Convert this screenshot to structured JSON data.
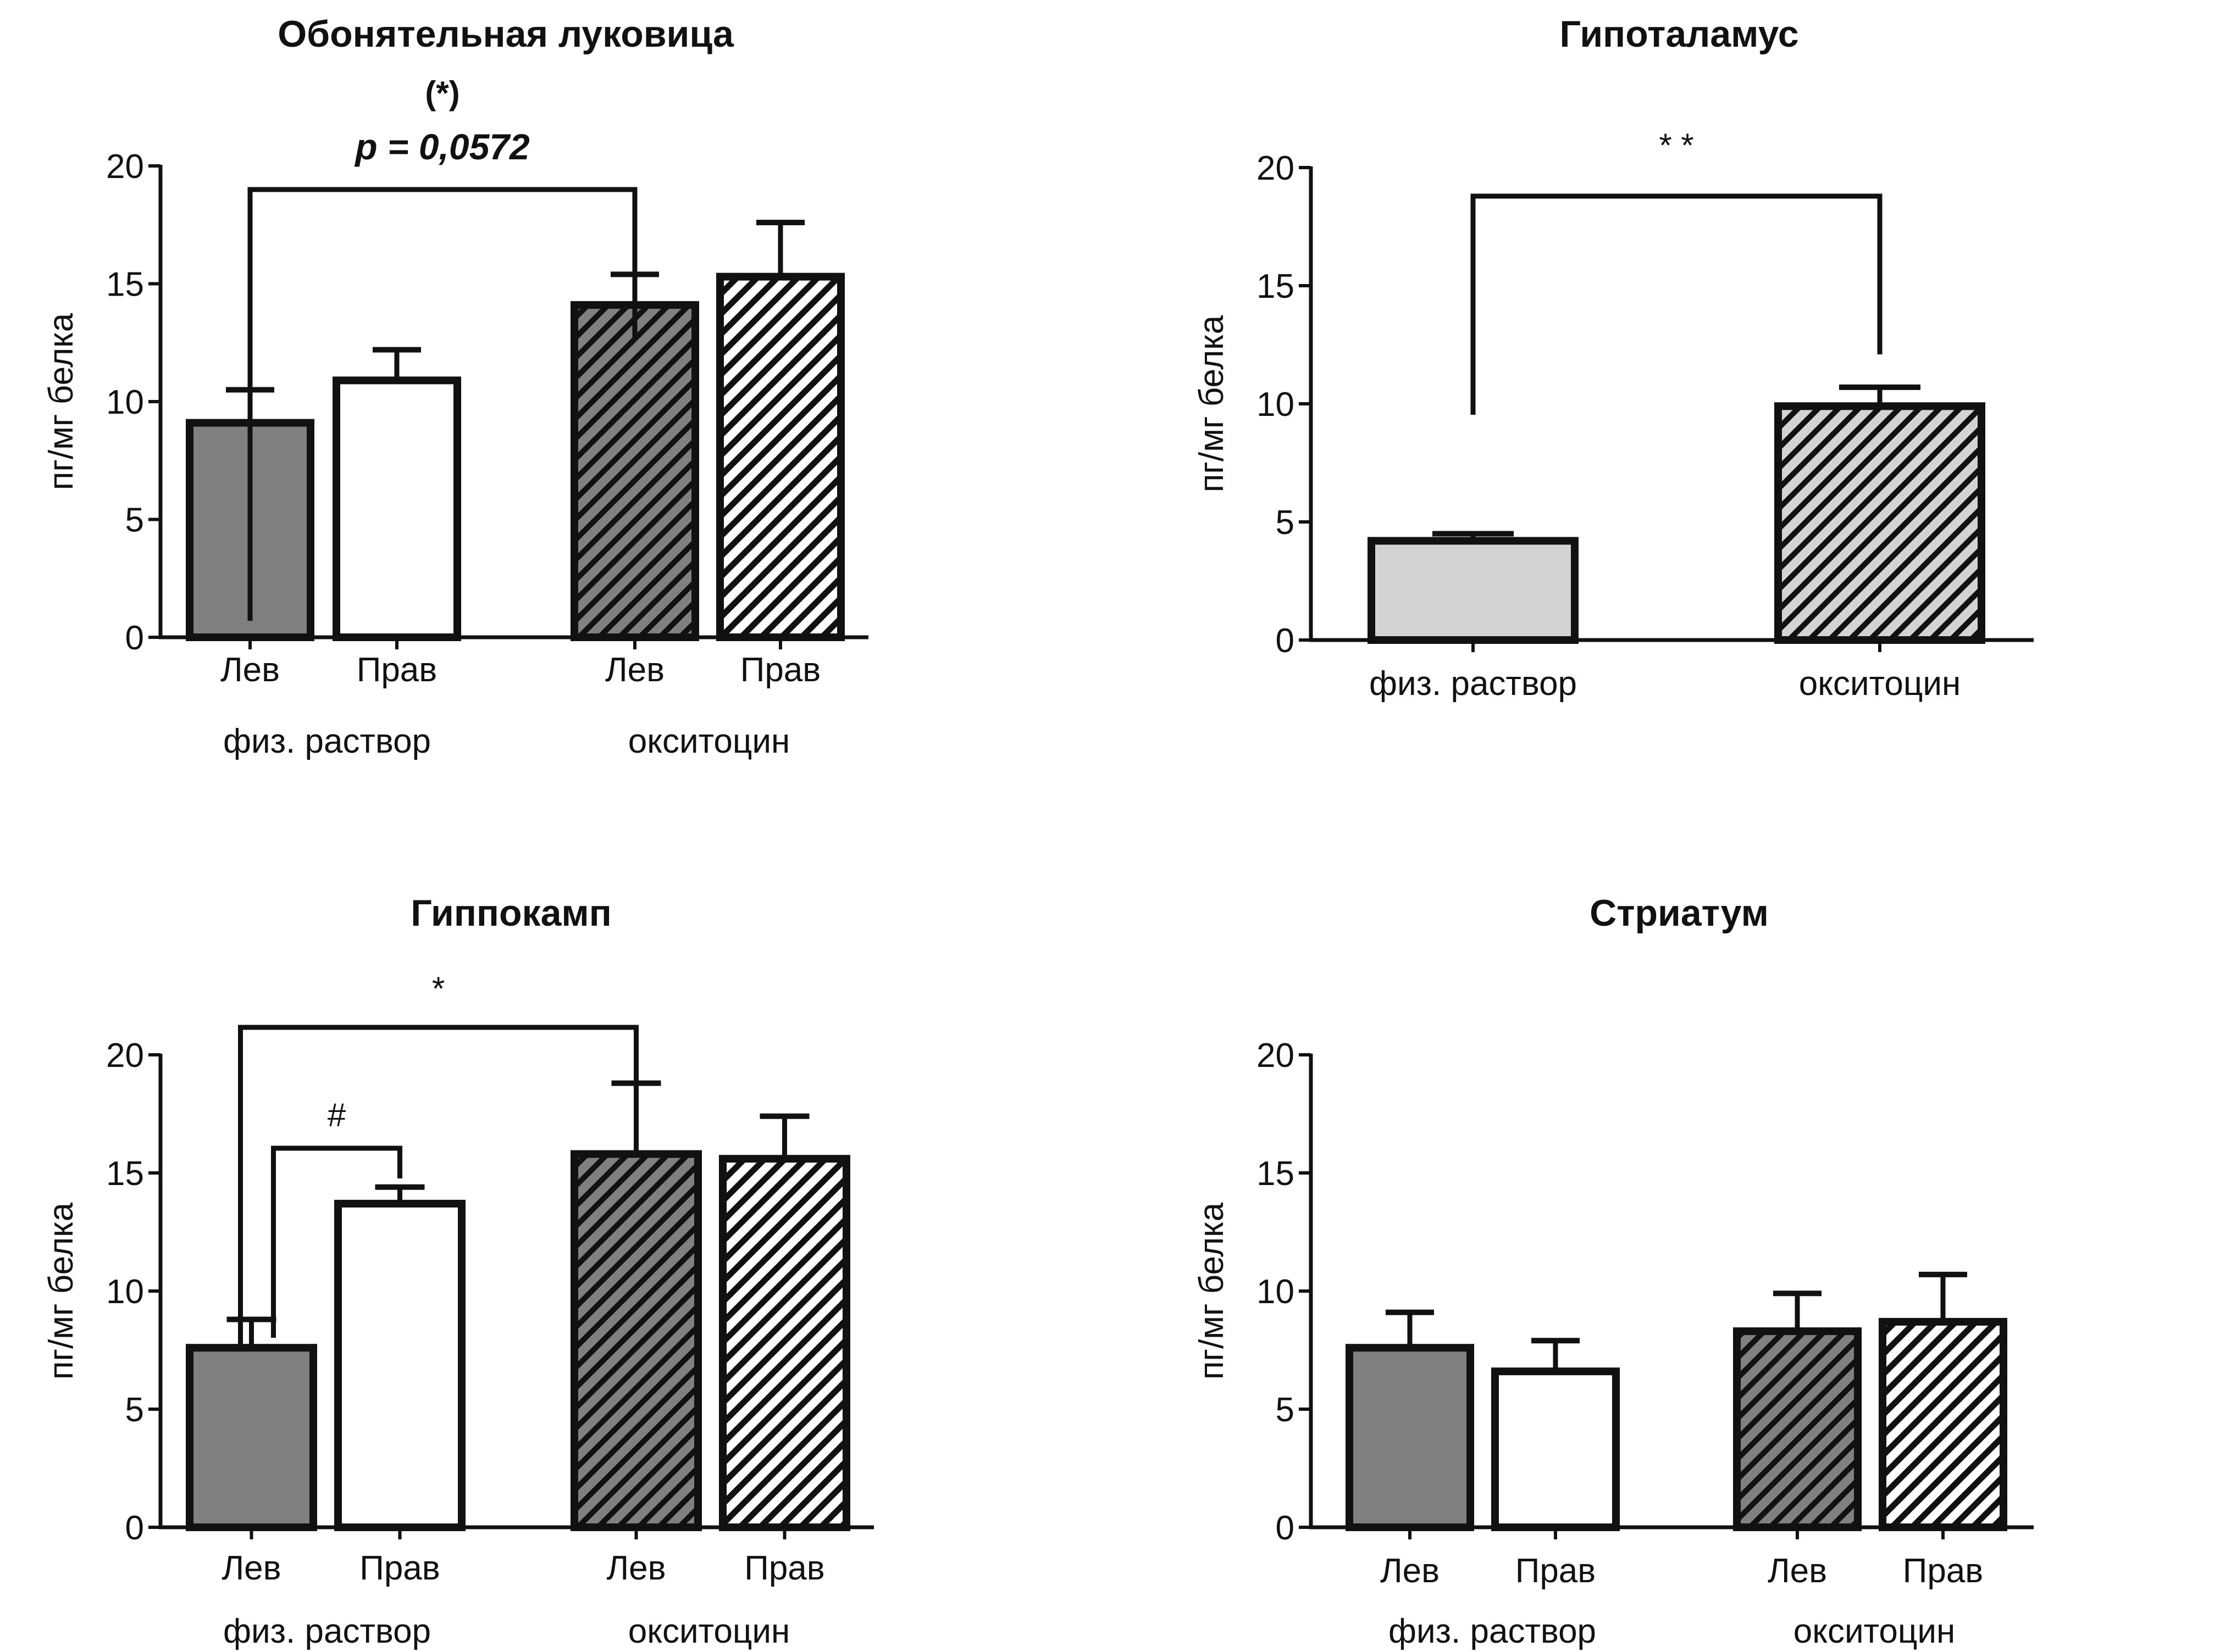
{
  "figure": {
    "description": "Four bar charts of oxytocin content in brain regions"
  },
  "chart_data": [
    {
      "type": "bar",
      "id": "olfactory",
      "title": "Обонятельная луковица",
      "ylabel": "пг/мг белка",
      "ylim": [
        0,
        20
      ],
      "yticks": [
        0,
        5,
        10,
        15,
        20
      ],
      "categories": [
        "Лев",
        "Прав",
        "Лев",
        "Прав"
      ],
      "groups": [
        {
          "label": "физ. раствор",
          "members": [
            0,
            1
          ]
        },
        {
          "label": "окситоцин",
          "members": [
            2,
            3
          ]
        }
      ],
      "values": [
        9.1,
        10.9,
        14.1,
        15.3
      ],
      "error_upper": [
        10.5,
        12.2,
        15.4,
        17.6
      ],
      "fills": [
        "gray",
        "white",
        "gray-hatch",
        "white-hatch"
      ],
      "annotations": [
        {
          "from": 0,
          "to": 2,
          "text": "(*)",
          "subtext": "p = 0,0572"
        }
      ]
    },
    {
      "type": "bar",
      "id": "hypothalamus",
      "title": "Гипоталамус",
      "ylabel": "пг/мг белка",
      "ylim": [
        0,
        20
      ],
      "yticks": [
        0,
        5,
        10,
        15,
        20
      ],
      "categories": [
        "физ. раствор",
        "окситоцин"
      ],
      "groups": [],
      "values": [
        4.2,
        9.9
      ],
      "error_upper": [
        4.5,
        10.7
      ],
      "fills": [
        "lightgray",
        "lightgray-hatch"
      ],
      "annotations": [
        {
          "from": 0,
          "to": 1,
          "text": "* *"
        }
      ]
    },
    {
      "type": "bar",
      "id": "hippocampus",
      "title": "Гиппокамп",
      "ylabel": "пг/мг белка",
      "ylim": [
        0,
        20
      ],
      "yticks": [
        0,
        5,
        10,
        15,
        20
      ],
      "categories": [
        "Лев",
        "Прав",
        "Лев",
        "Прав"
      ],
      "groups": [
        {
          "label": "физ. раствор",
          "members": [
            0,
            1
          ]
        },
        {
          "label": "окситоцин",
          "members": [
            2,
            3
          ]
        }
      ],
      "values": [
        7.6,
        13.7,
        15.8,
        15.6
      ],
      "error_upper": [
        8.8,
        14.4,
        18.8,
        17.4
      ],
      "fills": [
        "gray",
        "white",
        "gray-hatch",
        "white-hatch"
      ],
      "annotations": [
        {
          "from": 0,
          "to": 2,
          "text": "*"
        },
        {
          "from": 0,
          "to": 1,
          "text": "#"
        }
      ]
    },
    {
      "type": "bar",
      "id": "striatum",
      "title": "Стриатум",
      "ylabel": "пг/мг белка",
      "ylim": [
        0,
        20
      ],
      "yticks": [
        0,
        5,
        10,
        15,
        20
      ],
      "categories": [
        "Лев",
        "Прав",
        "Лев",
        "Прав"
      ],
      "groups": [
        {
          "label": "физ. раствор",
          "members": [
            0,
            1
          ]
        },
        {
          "label": "окситоцин",
          "members": [
            2,
            3
          ]
        }
      ],
      "values": [
        7.6,
        6.6,
        8.3,
        8.7
      ],
      "error_upper": [
        9.1,
        7.9,
        9.9,
        10.7
      ],
      "fills": [
        "gray",
        "white",
        "gray-hatch",
        "white-hatch"
      ],
      "annotations": []
    }
  ],
  "colors": {
    "gray": "#808080",
    "white": "#ffffff",
    "lightgray": "#d3d3d3",
    "ink": "#111111"
  }
}
